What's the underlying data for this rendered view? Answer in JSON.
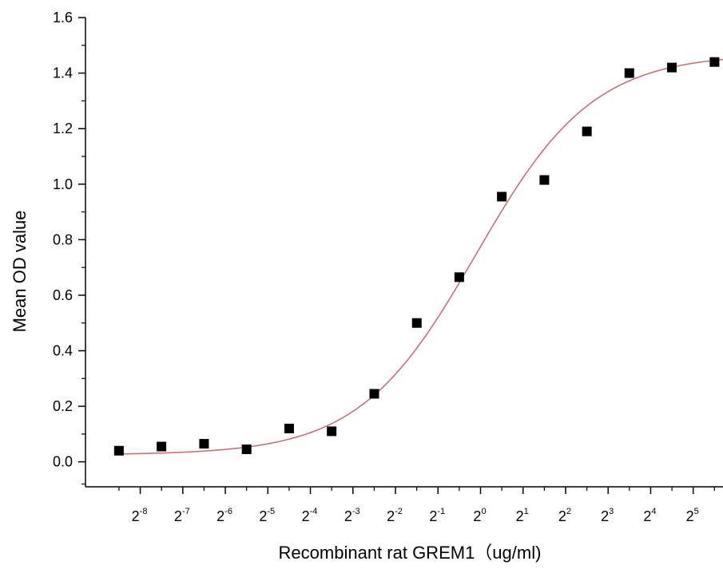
{
  "chart_data": {
    "type": "scatter",
    "title": "",
    "xlabel": "Recombinant rat  GREM1（ug/ml)",
    "ylabel": "Mean OD value",
    "x_scale": "log2",
    "x_tick_base": "2",
    "x_tick_exponents": [
      "-8",
      "-7",
      "-6",
      "-5",
      "-4",
      "-3",
      "-2",
      "-1",
      "0",
      "1",
      "2",
      "3",
      "4",
      "5"
    ],
    "x_tick_values": [
      0.00390625,
      0.0078125,
      0.015625,
      0.03125,
      0.0625,
      0.125,
      0.25,
      0.5,
      1,
      2,
      4,
      8,
      16,
      32
    ],
    "xlim": [
      0.0016,
      52
    ],
    "ylim": [
      -0.09,
      1.6
    ],
    "y_ticks": [
      0.0,
      0.2,
      0.4,
      0.6,
      0.8,
      1.0,
      1.2,
      1.4,
      1.6
    ],
    "y_tick_labels": [
      "0.0",
      "0.2",
      "0.4",
      "0.6",
      "0.8",
      "1.0",
      "1.2",
      "1.4",
      "1.6"
    ],
    "grid": false,
    "legend": "none",
    "marker_color": "#000000",
    "curve_color": "#cc6670",
    "points": {
      "x": [
        0.00276,
        0.00552,
        0.01105,
        0.0221,
        0.0442,
        0.0884,
        0.177,
        0.354,
        0.707,
        1.414,
        2.83,
        5.66,
        11.3,
        22.6,
        45.3
      ],
      "y": [
        0.04,
        0.055,
        0.065,
        0.045,
        0.12,
        0.11,
        0.245,
        0.5,
        0.665,
        0.955,
        1.015,
        1.19,
        1.4,
        1.42,
        1.44
      ]
    },
    "fit_curve": {
      "model": "4PL",
      "bottom": 0.025,
      "top": 1.47,
      "ec50": 0.93,
      "hill": 1.05
    }
  }
}
